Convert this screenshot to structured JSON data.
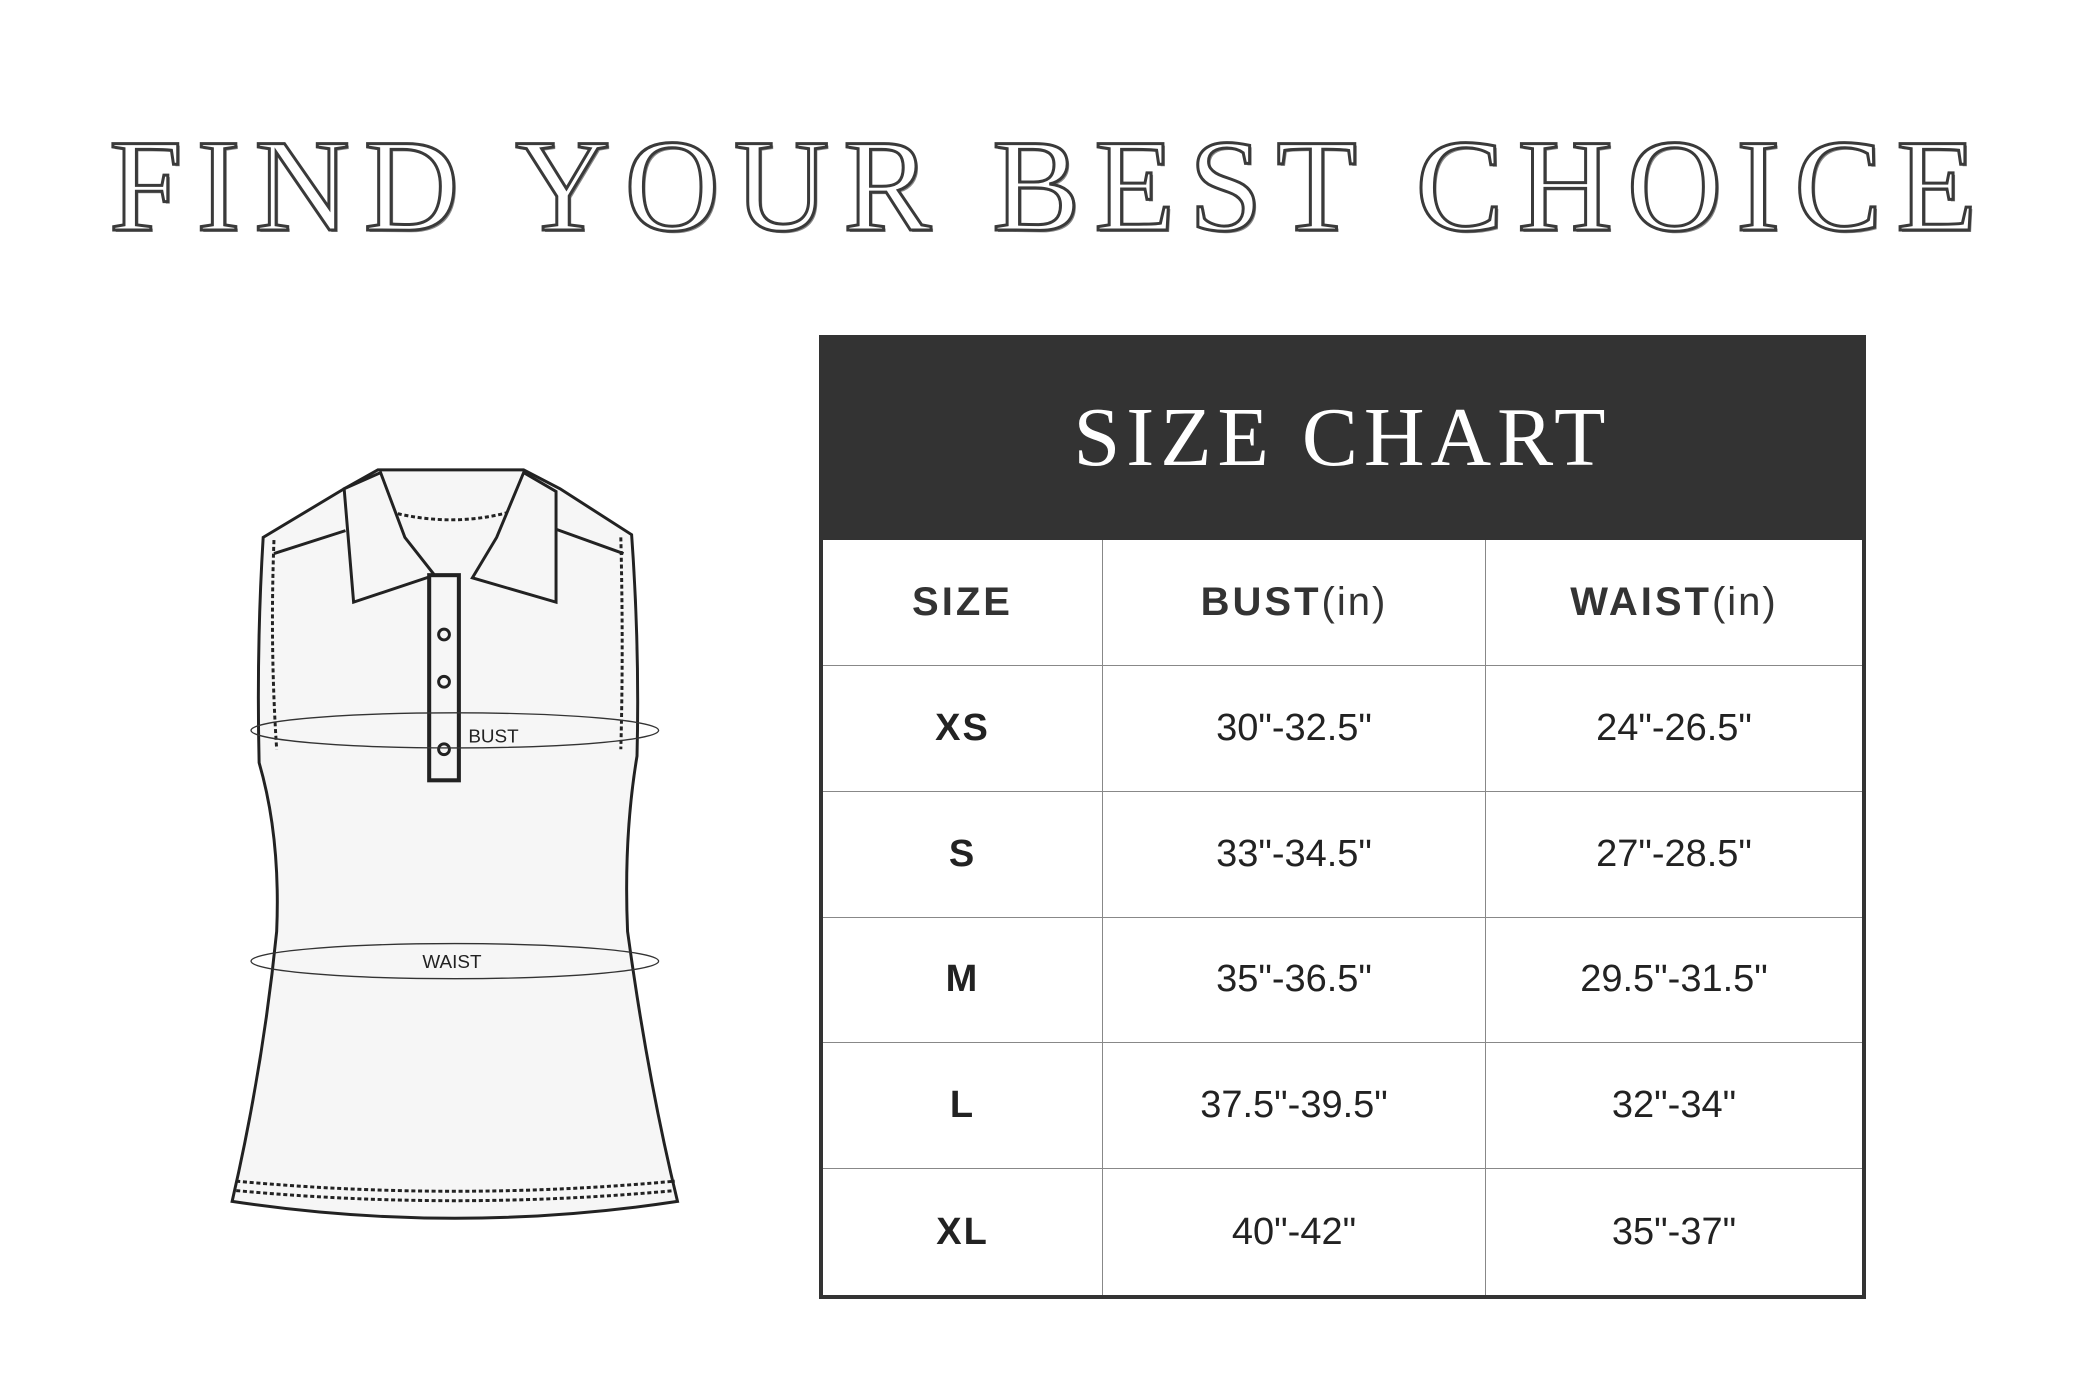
{
  "title": "FIND YOUR BEST CHOICE",
  "diagram": {
    "bust_label": "BUST",
    "waist_label": "WAIST"
  },
  "size_chart": {
    "heading": "SIZE CHART",
    "columns": [
      {
        "label": "SIZE",
        "unit": ""
      },
      {
        "label": "BUST",
        "unit": "(in)"
      },
      {
        "label": "WAIST",
        "unit": "(in)"
      }
    ],
    "rows": [
      [
        "XS",
        "30\"-32.5\"",
        "24\"-26.5\""
      ],
      [
        "S",
        "33\"-34.5\"",
        "27\"-28.5\""
      ],
      [
        "M",
        "35\"-36.5\"",
        "29.5\"-31.5\""
      ],
      [
        "L",
        "37.5\"-39.5\"",
        "32\"-34\""
      ],
      [
        "XL",
        "40\"-42\"",
        "35\"-37\""
      ]
    ]
  },
  "colors": {
    "header_bg": "#333333",
    "text": "#222222"
  }
}
